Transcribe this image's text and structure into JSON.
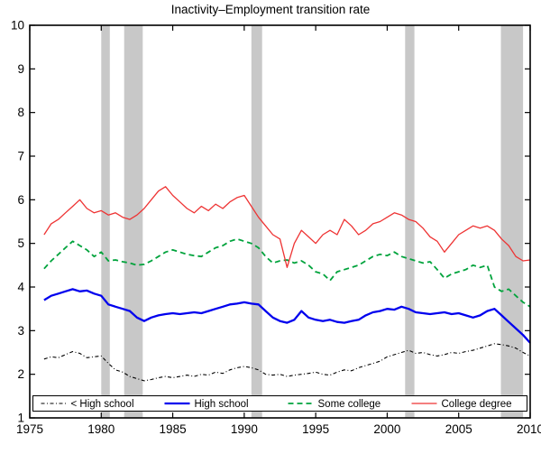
{
  "chart_data": {
    "type": "line",
    "title": "Inactivity–Employment transition rate",
    "xlabel": "",
    "ylabel": "",
    "xlim": [
      1975,
      2010
    ],
    "ylim": [
      1,
      10
    ],
    "xticks": [
      1975,
      1980,
      1985,
      1990,
      1995,
      2000,
      2005,
      2010
    ],
    "yticks": [
      1,
      2,
      3,
      4,
      5,
      6,
      7,
      8,
      9,
      10
    ],
    "grid": false,
    "legend_position": "bottom-inside-horizontal",
    "band_color": "#c8c8c8",
    "axis_color": "#000000",
    "recession_bands": [
      [
        1980.0,
        1980.6
      ],
      [
        1981.6,
        1982.9
      ],
      [
        1990.5,
        1991.25
      ],
      [
        2001.25,
        2001.9
      ],
      [
        2007.95,
        2009.5
      ]
    ],
    "x_start": 1976.0,
    "x_step": 0.5,
    "series": [
      {
        "name": "< High school",
        "color": "#000000",
        "style": "dashdot",
        "width": 1.1,
        "values": [
          2.35,
          2.4,
          2.38,
          2.45,
          2.52,
          2.48,
          2.38,
          2.4,
          2.42,
          2.25,
          2.1,
          2.05,
          1.95,
          1.9,
          1.85,
          1.88,
          1.92,
          1.95,
          1.92,
          1.95,
          1.98,
          1.95,
          2.0,
          1.98,
          2.05,
          2.02,
          2.1,
          2.15,
          2.18,
          2.15,
          2.1,
          2.0,
          1.98,
          2.0,
          1.95,
          1.98,
          2.0,
          2.02,
          2.05,
          2.0,
          1.98,
          2.05,
          2.1,
          2.08,
          2.15,
          2.2,
          2.25,
          2.3,
          2.4,
          2.45,
          2.5,
          2.55,
          2.48,
          2.5,
          2.45,
          2.42,
          2.45,
          2.5,
          2.48,
          2.52,
          2.55,
          2.6,
          2.65,
          2.7,
          2.68,
          2.65,
          2.6,
          2.5,
          2.42
        ]
      },
      {
        "name": "High school",
        "color": "#0000ee",
        "style": "solid",
        "width": 2.3,
        "values": [
          3.7,
          3.8,
          3.85,
          3.9,
          3.95,
          3.9,
          3.92,
          3.85,
          3.8,
          3.6,
          3.55,
          3.5,
          3.45,
          3.3,
          3.22,
          3.3,
          3.35,
          3.38,
          3.4,
          3.38,
          3.4,
          3.42,
          3.4,
          3.45,
          3.5,
          3.55,
          3.6,
          3.62,
          3.65,
          3.62,
          3.6,
          3.45,
          3.3,
          3.22,
          3.18,
          3.25,
          3.45,
          3.3,
          3.25,
          3.22,
          3.25,
          3.2,
          3.18,
          3.22,
          3.25,
          3.35,
          3.42,
          3.45,
          3.5,
          3.48,
          3.55,
          3.5,
          3.42,
          3.4,
          3.38,
          3.4,
          3.42,
          3.38,
          3.4,
          3.35,
          3.3,
          3.35,
          3.45,
          3.5,
          3.35,
          3.2,
          3.05,
          2.9,
          2.72
        ]
      },
      {
        "name": "Some college",
        "color": "#00a33c",
        "style": "dashed",
        "width": 1.8,
        "values": [
          4.42,
          4.6,
          4.75,
          4.9,
          5.05,
          4.95,
          4.85,
          4.7,
          4.8,
          4.6,
          4.62,
          4.58,
          4.55,
          4.5,
          4.52,
          4.6,
          4.7,
          4.8,
          4.85,
          4.8,
          4.75,
          4.72,
          4.7,
          4.8,
          4.9,
          4.95,
          5.05,
          5.1,
          5.05,
          5.0,
          4.9,
          4.7,
          4.55,
          4.6,
          4.62,
          4.55,
          4.6,
          4.5,
          4.35,
          4.3,
          4.15,
          4.35,
          4.4,
          4.45,
          4.5,
          4.6,
          4.7,
          4.75,
          4.72,
          4.8,
          4.7,
          4.65,
          4.6,
          4.55,
          4.58,
          4.4,
          4.2,
          4.3,
          4.35,
          4.4,
          4.5,
          4.45,
          4.5,
          4.0,
          3.9,
          3.95,
          3.8,
          3.65,
          3.55
        ]
      },
      {
        "name": "College degree",
        "color": "#ee3333",
        "style": "solid",
        "width": 1.3,
        "values": [
          5.2,
          5.45,
          5.55,
          5.7,
          5.85,
          6.0,
          5.8,
          5.7,
          5.75,
          5.65,
          5.7,
          5.6,
          5.55,
          5.65,
          5.8,
          6.0,
          6.2,
          6.3,
          6.1,
          5.95,
          5.8,
          5.7,
          5.85,
          5.75,
          5.9,
          5.8,
          5.95,
          6.05,
          6.1,
          5.85,
          5.6,
          5.4,
          5.2,
          5.1,
          4.45,
          5.0,
          5.3,
          5.15,
          5.0,
          5.2,
          5.3,
          5.2,
          5.55,
          5.4,
          5.2,
          5.3,
          5.45,
          5.5,
          5.6,
          5.7,
          5.65,
          5.55,
          5.5,
          5.35,
          5.15,
          5.05,
          4.8,
          5.0,
          5.2,
          5.3,
          5.4,
          5.35,
          5.4,
          5.3,
          5.1,
          4.95,
          4.7,
          4.6,
          4.62
        ]
      }
    ]
  }
}
